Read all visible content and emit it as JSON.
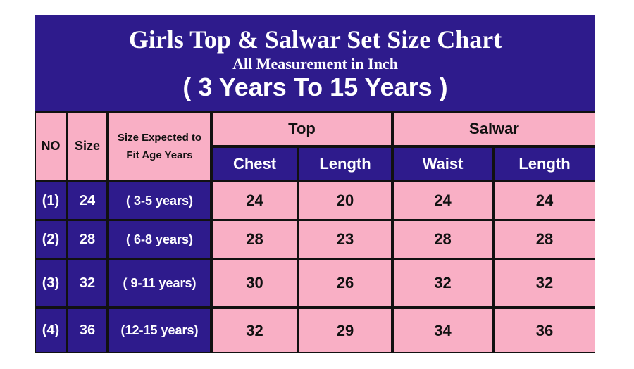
{
  "header": {
    "title": "Girls Top & Salwar Set Size Chart",
    "subtitle": "All Measurement in Inch",
    "range": "( 3 Years To 15 Years )"
  },
  "columns": {
    "no": "NO",
    "size": "Size",
    "age": "Size Expected to Fit Age Years",
    "top": "Top",
    "salwar": "Salwar",
    "chest": "Chest",
    "top_length": "Length",
    "waist": "Waist",
    "salwar_length": "Length"
  },
  "rows": [
    {
      "no": "(1)",
      "size": "24",
      "age": "( 3-5 years)",
      "chest": "24",
      "top_length": "20",
      "waist": "24",
      "salwar_length": "24"
    },
    {
      "no": "(2)",
      "size": "28",
      "age": "( 6-8 years)",
      "chest": "28",
      "top_length": "23",
      "waist": "28",
      "salwar_length": "28"
    },
    {
      "no": "(3)",
      "size": "32",
      "age": "( 9-11 years)",
      "chest": "30",
      "top_length": "26",
      "waist": "32",
      "salwar_length": "32"
    },
    {
      "no": "(4)",
      "size": "36",
      "age": "(12-15 years)",
      "chest": "32",
      "top_length": "29",
      "waist": "34",
      "salwar_length": "36"
    }
  ],
  "colors": {
    "purple": "#2e1b8c",
    "pink": "#f9afc5"
  }
}
